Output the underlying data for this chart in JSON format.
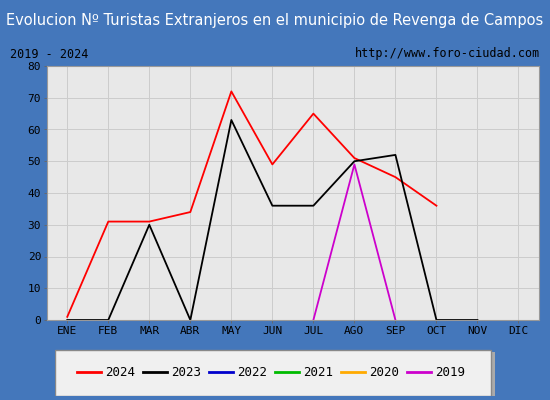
{
  "title": "Evolucion Nº Turistas Extranjeros en el municipio de Revenga de Campos",
  "subtitle_left": "2019 - 2024",
  "subtitle_right": "http://www.foro-ciudad.com",
  "months": [
    "ENE",
    "FEB",
    "MAR",
    "ABR",
    "MAY",
    "JUN",
    "JUL",
    "AGO",
    "SEP",
    "OCT",
    "NOV",
    "DIC"
  ],
  "ylim": [
    0,
    80
  ],
  "yticks": [
    0,
    10,
    20,
    30,
    40,
    50,
    60,
    70,
    80
  ],
  "series": {
    "2024": {
      "color": "#ff0000",
      "linestyle": "-",
      "values": [
        1,
        31,
        31,
        34,
        72,
        49,
        65,
        51,
        45,
        36,
        null,
        null
      ]
    },
    "2023": {
      "color": "#000000",
      "linestyle": "-",
      "values": [
        0,
        0,
        30,
        0,
        63,
        36,
        36,
        50,
        52,
        0,
        0,
        null
      ]
    },
    "2022": {
      "color": "#0000cc",
      "linestyle": "-",
      "values": [
        null,
        null,
        null,
        null,
        null,
        null,
        null,
        null,
        null,
        null,
        null,
        null
      ]
    },
    "2021": {
      "color": "#00bb00",
      "linestyle": "-",
      "values": [
        null,
        null,
        null,
        null,
        null,
        null,
        null,
        null,
        null,
        null,
        null,
        null
      ]
    },
    "2020": {
      "color": "#ffaa00",
      "linestyle": "-",
      "values": [
        null,
        null,
        null,
        null,
        null,
        null,
        null,
        null,
        null,
        null,
        null,
        null
      ]
    },
    "2019": {
      "color": "#cc00cc",
      "linestyle": "-",
      "values": [
        null,
        null,
        null,
        null,
        null,
        null,
        0,
        49,
        0,
        null,
        null,
        null
      ]
    }
  },
  "title_bg_color": "#4477bb",
  "title_text_color": "#ffffff",
  "plot_bg_color": "#e8e8e8",
  "grid_color": "#cccccc",
  "title_fontsize": 10.5,
  "axis_fontsize": 8,
  "legend_fontsize": 9
}
